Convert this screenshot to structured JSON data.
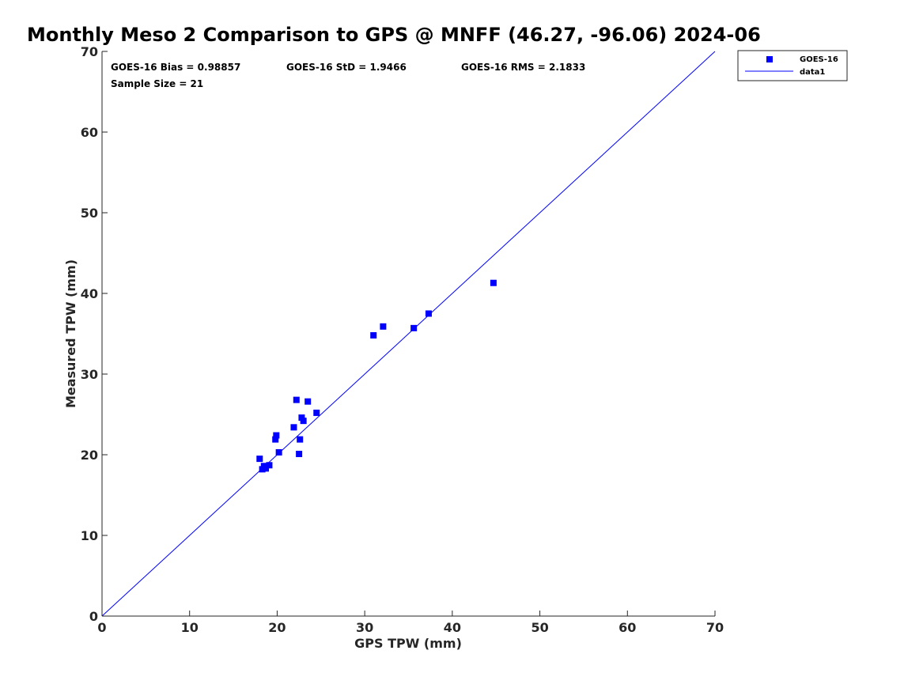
{
  "chart_data": {
    "type": "scatter",
    "title": "Monthly Meso 2 Comparison to GPS @ MNFF (46.27, -96.06) 2024-06",
    "xlabel": "GPS TPW (mm)",
    "ylabel": "Measured TPW (mm)",
    "xlim": [
      0,
      70
    ],
    "ylim": [
      0,
      70
    ],
    "xticks": [
      "0",
      "10",
      "20",
      "30",
      "40",
      "50",
      "60",
      "70"
    ],
    "yticks": [
      "0",
      "10",
      "20",
      "30",
      "40",
      "50",
      "60",
      "70"
    ],
    "grid": false,
    "legend_position": "outside-top-right",
    "annotations": {
      "bias": "GOES-16 Bias = 0.98857",
      "std": "GOES-16 StD = 1.9466",
      "rms": "GOES-16 RMS = 2.1833",
      "sample": "Sample Size = 21"
    },
    "series": [
      {
        "name": "GOES-16",
        "type": "scatter",
        "marker": "square",
        "color": "#0000ff",
        "points": [
          [
            18.0,
            19.5
          ],
          [
            18.3,
            18.2
          ],
          [
            18.5,
            18.6
          ],
          [
            18.7,
            18.3
          ],
          [
            19.1,
            18.7
          ],
          [
            19.8,
            21.9
          ],
          [
            19.9,
            22.4
          ],
          [
            20.2,
            20.3
          ],
          [
            21.9,
            23.4
          ],
          [
            22.2,
            26.8
          ],
          [
            22.5,
            20.1
          ],
          [
            22.6,
            21.9
          ],
          [
            22.8,
            24.6
          ],
          [
            23.0,
            24.2
          ],
          [
            23.5,
            26.6
          ],
          [
            24.5,
            25.2
          ],
          [
            31.0,
            34.8
          ],
          [
            32.1,
            35.9
          ],
          [
            35.6,
            35.7
          ],
          [
            37.3,
            37.5
          ],
          [
            44.7,
            41.3
          ]
        ]
      },
      {
        "name": "data1",
        "type": "line",
        "color": "#0000ff",
        "points": [
          [
            0,
            0
          ],
          [
            70,
            70
          ]
        ]
      }
    ]
  }
}
